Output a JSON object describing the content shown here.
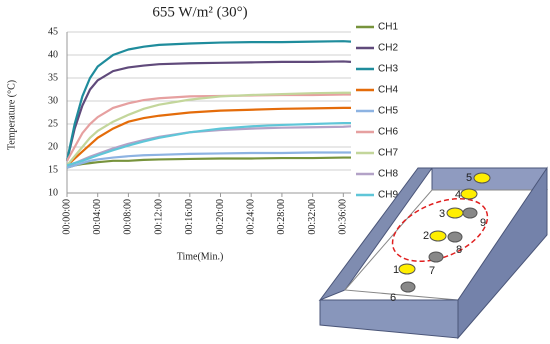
{
  "chart_data": {
    "type": "line",
    "title": "655 W/m² (30°)",
    "xlabel": "Time(Min.)",
    "ylabel": "Temperature (°C)",
    "x": [
      0,
      1,
      2,
      3,
      4,
      6,
      8,
      10,
      12,
      16,
      20,
      24,
      28,
      32,
      36,
      37
    ],
    "xlim": [
      0,
      37
    ],
    "xticks": [
      {
        "value": 0,
        "label": "00:00:00"
      },
      {
        "value": 4,
        "label": "00:04:00"
      },
      {
        "value": 8,
        "label": "00:08:00"
      },
      {
        "value": 12,
        "label": "00:12:00"
      },
      {
        "value": 16,
        "label": "00:16:00"
      },
      {
        "value": 20,
        "label": "00:20:00"
      },
      {
        "value": 24,
        "label": "00:24:00"
      },
      {
        "value": 28,
        "label": "00:28:00"
      },
      {
        "value": 32,
        "label": "00:32:00"
      },
      {
        "value": 36,
        "label": "00:36:00"
      }
    ],
    "ylim": [
      10,
      45
    ],
    "yticks": [
      10,
      15,
      20,
      25,
      30,
      35,
      40,
      45
    ],
    "grid": true,
    "legend": "right",
    "series": [
      {
        "name": "CH1",
        "color": "#77933c",
        "values": [
          15.5,
          16,
          16.3,
          16.5,
          16.7,
          17,
          17,
          17.2,
          17.3,
          17.4,
          17.5,
          17.5,
          17.6,
          17.6,
          17.7,
          17.7
        ]
      },
      {
        "name": "CH2",
        "color": "#604a7b",
        "values": [
          17,
          24,
          29,
          32.5,
          34.5,
          36.5,
          37.3,
          37.7,
          38,
          38.2,
          38.3,
          38.4,
          38.5,
          38.5,
          38.6,
          38.5
        ]
      },
      {
        "name": "CH3",
        "color": "#1f8c9c",
        "values": [
          17,
          25,
          31,
          35,
          37.5,
          40,
          41.2,
          41.8,
          42.2,
          42.5,
          42.7,
          42.8,
          42.8,
          42.9,
          43,
          42.9
        ]
      },
      {
        "name": "CH4",
        "color": "#e46c0a",
        "values": [
          16,
          17.5,
          19,
          20.5,
          22,
          24,
          25.5,
          26.3,
          26.8,
          27.5,
          27.9,
          28.1,
          28.3,
          28.4,
          28.5,
          28.5
        ]
      },
      {
        "name": "CH5",
        "color": "#8db3e2",
        "values": [
          15.5,
          16,
          16.5,
          17,
          17.3,
          17.7,
          18,
          18.2,
          18.3,
          18.5,
          18.6,
          18.7,
          18.7,
          18.8,
          18.8,
          18.8
        ]
      },
      {
        "name": "CH6",
        "color": "#e6a0a0",
        "values": [
          17,
          20,
          23,
          25,
          26.5,
          28.5,
          29.5,
          30.2,
          30.6,
          31,
          31.1,
          31.2,
          31.3,
          31.3,
          31.4,
          31.4
        ]
      },
      {
        "name": "CH7",
        "color": "#c3d69b",
        "values": [
          16,
          18,
          20,
          22,
          23.5,
          25.5,
          27,
          28.3,
          29.2,
          30.3,
          31,
          31.3,
          31.5,
          31.7,
          31.8,
          31.8
        ]
      },
      {
        "name": "CH8",
        "color": "#b3a2c7",
        "values": [
          16,
          16.5,
          17.2,
          17.9,
          18.5,
          19.7,
          20.7,
          21.5,
          22.2,
          23.2,
          23.7,
          24,
          24.2,
          24.3,
          24.4,
          24.5
        ]
      },
      {
        "name": "CH9",
        "color": "#5fc6d8",
        "values": [
          16,
          16.5,
          17,
          17.6,
          18.2,
          19.3,
          20.3,
          21.2,
          22,
          23.2,
          24,
          24.5,
          24.8,
          25,
          25.2,
          25.2
        ]
      }
    ]
  },
  "diagram": {
    "labels": [
      "1",
      "2",
      "3",
      "4",
      "5",
      "6",
      "7",
      "8",
      "9"
    ]
  }
}
